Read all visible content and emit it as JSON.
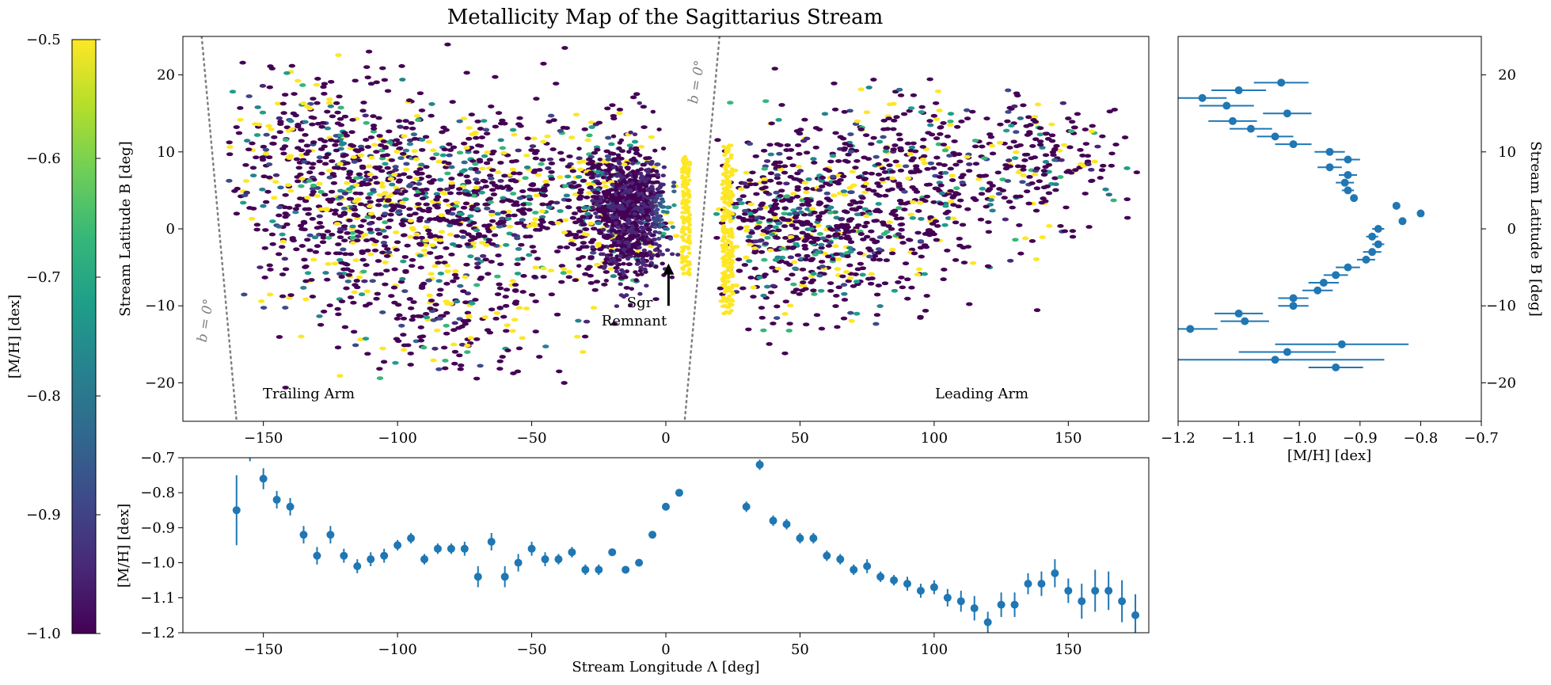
{
  "title": "Metallicity Map of the Sagittarius Stream",
  "colors": {
    "points": "#1f77b4",
    "guide_line": "#808080",
    "cmap": [
      "#440154",
      "#482878",
      "#3e4989",
      "#31688e",
      "#26828e",
      "#1f9e89",
      "#35b779",
      "#6ece58",
      "#b5de2b",
      "#fde725"
    ]
  },
  "chart_data": [
    {
      "id": "map",
      "type": "heatmap",
      "xlabel": "",
      "ylabel": "Stream Latitude B [deg]",
      "xlim": [
        -180,
        180
      ],
      "ylim": [
        -25,
        25
      ],
      "xticks": [
        -150,
        -100,
        -50,
        0,
        50,
        100,
        150
      ],
      "yticks": [
        -20,
        -10,
        0,
        10,
        20
      ],
      "xtick_labels": [
        "−150",
        "−100",
        "−50",
        "0",
        "50",
        "100",
        "150"
      ],
      "ytick_labels": [
        "−20",
        "−10",
        "0",
        "10",
        "20"
      ],
      "annotations": {
        "trailing": "Trailing Arm",
        "leading": "Leading Arm",
        "remnant_line1": "Sgr",
        "remnant_line2": "Remnant",
        "plane_label": "b = 0°"
      },
      "remnant_arrow": {
        "x": 1,
        "y_from": -10,
        "y_to": -4.5
      },
      "plane_lines": [
        {
          "x1": -173,
          "y1": 25,
          "x2": -160,
          "y2": -25
        },
        {
          "x1": 20,
          "y1": 25,
          "x2": 7,
          "y2": -25
        }
      ],
      "clumps": [
        {
          "x": -112,
          "y": 3,
          "sx": 35,
          "sy": 7,
          "n": 700
        },
        {
          "x": -65,
          "y": 4,
          "sx": 30,
          "sy": 6,
          "n": 500
        },
        {
          "x": -130,
          "y": 12,
          "sx": 25,
          "sy": 5,
          "n": 170
        },
        {
          "x": -80,
          "y": -12,
          "sx": 30,
          "sy": 4,
          "n": 150
        },
        {
          "x": -20,
          "y": 3,
          "sx": 12,
          "sy": 5,
          "n": 420
        },
        {
          "x": 50,
          "y": 0,
          "sx": 22,
          "sy": 5.5,
          "n": 600
        },
        {
          "x": 95,
          "y": 3,
          "sx": 25,
          "sy": 6,
          "n": 300
        },
        {
          "x": 140,
          "y": 9,
          "sx": 22,
          "sy": 4,
          "n": 200
        },
        {
          "x": 80,
          "y": 12,
          "sx": 25,
          "sy": 3,
          "n": 100
        }
      ],
      "colorbar": {
        "label": "[M/H] [dex]",
        "min": -1.0,
        "max": -0.5,
        "ticks": [
          -1.0,
          -0.9,
          -0.8,
          -0.7,
          -0.6,
          -0.5
        ],
        "tick_labels": [
          "−1.0",
          "−0.9",
          "−0.8",
          "−0.7",
          "−0.6",
          "−0.5"
        ]
      }
    },
    {
      "id": "metallicity_vs_lambda",
      "type": "scatter",
      "xlabel": "Stream Longitude Λ [deg]",
      "ylabel": "[M/H] [dex]",
      "xlim": [
        -180,
        180
      ],
      "ylim": [
        -1.2,
        -0.7
      ],
      "xticks": [
        -150,
        -100,
        -50,
        0,
        50,
        100,
        150
      ],
      "yticks": [
        -1.2,
        -1.1,
        -1.0,
        -0.9,
        -0.8,
        -0.7
      ],
      "xtick_labels": [
        "−150",
        "−100",
        "−50",
        "0",
        "50",
        "100",
        "150"
      ],
      "ytick_labels": [
        "−1.2",
        "−1.1",
        "−1.0",
        "−0.9",
        "−0.8",
        "−0.7"
      ],
      "points": [
        [
          -160,
          -0.85,
          0.1
        ],
        [
          -155,
          -0.69,
          0.02
        ],
        [
          -150,
          -0.76,
          0.03
        ],
        [
          -145,
          -0.82,
          0.025
        ],
        [
          -140,
          -0.84,
          0.025
        ],
        [
          -135,
          -0.92,
          0.025
        ],
        [
          -130,
          -0.98,
          0.025
        ],
        [
          -125,
          -0.92,
          0.025
        ],
        [
          -120,
          -0.98,
          0.02
        ],
        [
          -115,
          -1.01,
          0.02
        ],
        [
          -110,
          -0.99,
          0.02
        ],
        [
          -105,
          -0.98,
          0.02
        ],
        [
          -100,
          -0.95,
          0.015
        ],
        [
          -95,
          -0.93,
          0.015
        ],
        [
          -90,
          -0.99,
          0.015
        ],
        [
          -85,
          -0.96,
          0.015
        ],
        [
          -80,
          -0.96,
          0.015
        ],
        [
          -75,
          -0.96,
          0.02
        ],
        [
          -70,
          -1.04,
          0.03
        ],
        [
          -65,
          -0.94,
          0.025
        ],
        [
          -60,
          -1.04,
          0.03
        ],
        [
          -55,
          -1.0,
          0.025
        ],
        [
          -50,
          -0.96,
          0.02
        ],
        [
          -45,
          -0.99,
          0.02
        ],
        [
          -40,
          -0.99,
          0.015
        ],
        [
          -35,
          -0.97,
          0.015
        ],
        [
          -30,
          -1.02,
          0.015
        ],
        [
          -25,
          -1.02,
          0.015
        ],
        [
          -20,
          -0.97,
          0.01
        ],
        [
          -15,
          -1.02,
          0.01
        ],
        [
          -10,
          -1.0,
          0.008
        ],
        [
          -5,
          -0.92,
          0.006
        ],
        [
          0,
          -0.84,
          0.005
        ],
        [
          5,
          -0.8,
          0.005
        ],
        [
          30,
          -0.84,
          0.015
        ],
        [
          35,
          -0.72,
          0.015
        ],
        [
          40,
          -0.88,
          0.015
        ],
        [
          45,
          -0.89,
          0.015
        ],
        [
          50,
          -0.93,
          0.015
        ],
        [
          55,
          -0.93,
          0.015
        ],
        [
          60,
          -0.98,
          0.015
        ],
        [
          65,
          -0.99,
          0.015
        ],
        [
          70,
          -1.02,
          0.015
        ],
        [
          75,
          -1.01,
          0.02
        ],
        [
          80,
          -1.04,
          0.015
        ],
        [
          85,
          -1.05,
          0.015
        ],
        [
          90,
          -1.06,
          0.02
        ],
        [
          95,
          -1.08,
          0.02
        ],
        [
          100,
          -1.07,
          0.02
        ],
        [
          105,
          -1.1,
          0.025
        ],
        [
          110,
          -1.11,
          0.03
        ],
        [
          115,
          -1.13,
          0.035
        ],
        [
          120,
          -1.17,
          0.03
        ],
        [
          125,
          -1.12,
          0.035
        ],
        [
          130,
          -1.12,
          0.035
        ],
        [
          135,
          -1.06,
          0.03
        ],
        [
          140,
          -1.06,
          0.035
        ],
        [
          145,
          -1.03,
          0.04
        ],
        [
          150,
          -1.08,
          0.035
        ],
        [
          155,
          -1.11,
          0.05
        ],
        [
          160,
          -1.08,
          0.06
        ],
        [
          165,
          -1.08,
          0.055
        ],
        [
          170,
          -1.11,
          0.06
        ],
        [
          175,
          -1.15,
          0.06
        ]
      ]
    },
    {
      "id": "metallicity_vs_beta",
      "type": "scatter",
      "xlabel": "[M/H] [dex]",
      "ylabel": "Stream Latitude B [deg]",
      "xlim": [
        -1.2,
        -0.7
      ],
      "ylim": [
        -25,
        25
      ],
      "xticks": [
        -1.2,
        -1.1,
        -1.0,
        -0.9,
        -0.8,
        -0.7
      ],
      "yticks": [
        -20,
        -10,
        0,
        10,
        20
      ],
      "xtick_labels": [
        "−1.2",
        "−1.1",
        "−1.0",
        "−0.9",
        "−0.8",
        "−0.7"
      ],
      "ytick_labels": [
        "−20",
        "−10",
        "0",
        "10",
        "20"
      ],
      "points": [
        [
          -1.03,
          19,
          0.045
        ],
        [
          -1.1,
          18,
          0.045
        ],
        [
          -1.16,
          17,
          0.04
        ],
        [
          -1.12,
          16,
          0.045
        ],
        [
          -1.02,
          15,
          0.04
        ],
        [
          -1.11,
          14,
          0.04
        ],
        [
          -1.08,
          13,
          0.035
        ],
        [
          -1.04,
          12,
          0.03
        ],
        [
          -1.01,
          11,
          0.03
        ],
        [
          -0.95,
          10,
          0.025
        ],
        [
          -0.92,
          9,
          0.02
        ],
        [
          -0.95,
          8,
          0.02
        ],
        [
          -0.92,
          7,
          0.015
        ],
        [
          -0.925,
          6,
          0.015
        ],
        [
          -0.92,
          5,
          0.01
        ],
        [
          -0.91,
          4,
          0.005
        ],
        [
          -0.84,
          3,
          0.005
        ],
        [
          -0.8,
          2,
          0.005
        ],
        [
          -0.83,
          1,
          0.005
        ],
        [
          -0.87,
          0,
          0.01
        ],
        [
          -0.88,
          -1,
          0.01
        ],
        [
          -0.87,
          -2,
          0.01
        ],
        [
          -0.88,
          -3,
          0.015
        ],
        [
          -0.89,
          -4,
          0.015
        ],
        [
          -0.92,
          -5,
          0.02
        ],
        [
          -0.94,
          -6,
          0.02
        ],
        [
          -0.96,
          -7,
          0.025
        ],
        [
          -0.97,
          -8,
          0.025
        ],
        [
          -1.01,
          -9,
          0.025
        ],
        [
          -1.01,
          -10,
          0.025
        ],
        [
          -1.1,
          -11,
          0.04
        ],
        [
          -1.09,
          -12,
          0.04
        ],
        [
          -1.18,
          -13,
          0.045
        ],
        [
          -0.93,
          -15,
          0.11
        ],
        [
          -1.02,
          -16,
          0.08
        ],
        [
          -1.04,
          -17,
          0.18
        ],
        [
          -0.94,
          -18,
          0.045
        ]
      ]
    }
  ]
}
